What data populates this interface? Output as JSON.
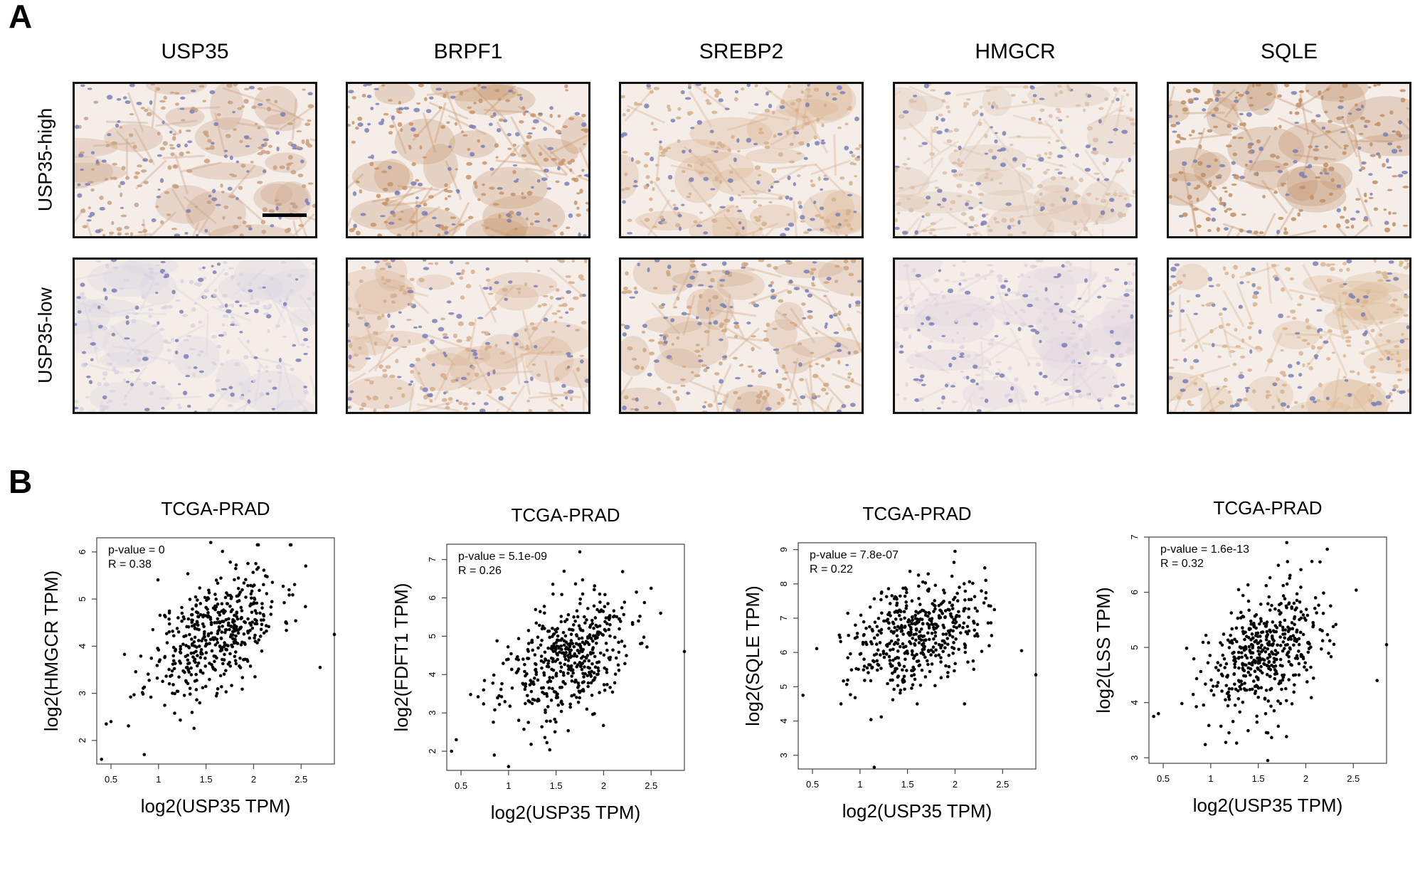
{
  "panel_a": {
    "letter": "A",
    "columns": [
      "USP35",
      "BRPF1",
      "SREBP2",
      "HMGCR",
      "SQLE"
    ],
    "rows": [
      "USP35-high",
      "USP35-low"
    ],
    "stain_colors": {
      "USP35-high": [
        "#c9a080",
        "#c8946a",
        "#d6b08c",
        "#dcc0a8",
        "#c08f66"
      ],
      "USP35-low": [
        "#d8d4e0",
        "#d6ae8e",
        "#cfa783",
        "#ddd3de",
        "#d9b590"
      ]
    }
  },
  "panel_b": {
    "letter": "B",
    "chart_data": [
      {
        "type": "scatter",
        "title": "TCGA-PRAD",
        "xlabel": "log2(USP35 TPM)",
        "ylabel": "log2(HMGCR TPM)",
        "xlim": [
          0.35,
          2.85
        ],
        "ylim": [
          1.5,
          6.3
        ],
        "xticks": [
          0.5,
          1.0,
          1.5,
          2.0,
          2.5
        ],
        "yticks": [
          2,
          3,
          4,
          5,
          6
        ],
        "annotations": [
          "p-value = 0",
          "R = 0.38"
        ],
        "slope": 1.05,
        "x_mean": 1.6,
        "y_mean": 4.3,
        "noise": 0.6,
        "seed": 11,
        "extra_points": [
          [
            0.4,
            1.6
          ],
          [
            0.45,
            2.35
          ],
          [
            0.5,
            2.4
          ],
          [
            0.85,
            1.7
          ],
          [
            1.55,
            6.2
          ],
          [
            2.05,
            6.15
          ],
          [
            2.85,
            4.25
          ],
          [
            2.7,
            3.55
          ]
        ]
      },
      {
        "type": "scatter",
        "title": "TCGA-PRAD",
        "xlabel": "log2(USP35 TPM)",
        "ylabel": "log2(FDFT1 TPM)",
        "xlim": [
          0.35,
          2.85
        ],
        "ylim": [
          1.5,
          7.4
        ],
        "xticks": [
          0.5,
          1.0,
          1.5,
          2.0,
          2.5
        ],
        "yticks": [
          2,
          3,
          4,
          5,
          6,
          7
        ],
        "annotations": [
          "p-value = 5.1e-09",
          "R = 0.26"
        ],
        "slope": 0.85,
        "x_mean": 1.6,
        "y_mean": 4.4,
        "noise": 0.75,
        "seed": 23,
        "extra_points": [
          [
            0.4,
            2.0
          ],
          [
            0.45,
            2.3
          ],
          [
            1.0,
            1.6
          ],
          [
            0.85,
            1.9
          ],
          [
            1.75,
            7.2
          ],
          [
            2.6,
            5.6
          ],
          [
            2.85,
            4.6
          ],
          [
            2.5,
            6.25
          ]
        ]
      },
      {
        "type": "scatter",
        "title": "TCGA-PRAD",
        "xlabel": "log2(USP35 TPM)",
        "ylabel": "log2(SQLE TPM)",
        "xlim": [
          0.35,
          2.85
        ],
        "ylim": [
          2.6,
          9.2
        ],
        "xticks": [
          0.5,
          1.0,
          1.5,
          2.0,
          2.5
        ],
        "yticks": [
          3,
          4,
          5,
          6,
          7,
          8,
          9
        ],
        "annotations": [
          "p-value = 7.8e-07",
          "R = 0.22"
        ],
        "slope": 0.75,
        "x_mean": 1.6,
        "y_mean": 6.6,
        "noise": 0.75,
        "seed": 37,
        "extra_points": [
          [
            1.15,
            2.65
          ],
          [
            0.4,
            4.75
          ],
          [
            2.0,
            8.95
          ],
          [
            2.85,
            5.35
          ],
          [
            2.7,
            6.05
          ],
          [
            2.1,
            4.5
          ],
          [
            0.8,
            4.5
          ]
        ]
      },
      {
        "type": "scatter",
        "title": "TCGA-PRAD",
        "xlabel": "log2(USP35 TPM)",
        "ylabel": "log2(LSS TPM)",
        "xlim": [
          0.35,
          2.85
        ],
        "ylim": [
          2.9,
          7.0
        ],
        "xticks": [
          0.5,
          1.0,
          1.5,
          2.0,
          2.5
        ],
        "yticks": [
          3,
          4,
          5,
          6,
          7
        ],
        "annotations": [
          "p-value = 1.6e-13",
          "R = 0.32"
        ],
        "slope": 0.7,
        "x_mean": 1.6,
        "y_mean": 4.9,
        "noise": 0.55,
        "seed": 53,
        "extra_points": [
          [
            1.6,
            2.95
          ],
          [
            1.8,
            6.9
          ],
          [
            0.4,
            3.75
          ],
          [
            2.85,
            5.05
          ],
          [
            2.75,
            4.4
          ],
          [
            2.15,
            6.55
          ],
          [
            0.45,
            3.8
          ]
        ]
      }
    ]
  }
}
